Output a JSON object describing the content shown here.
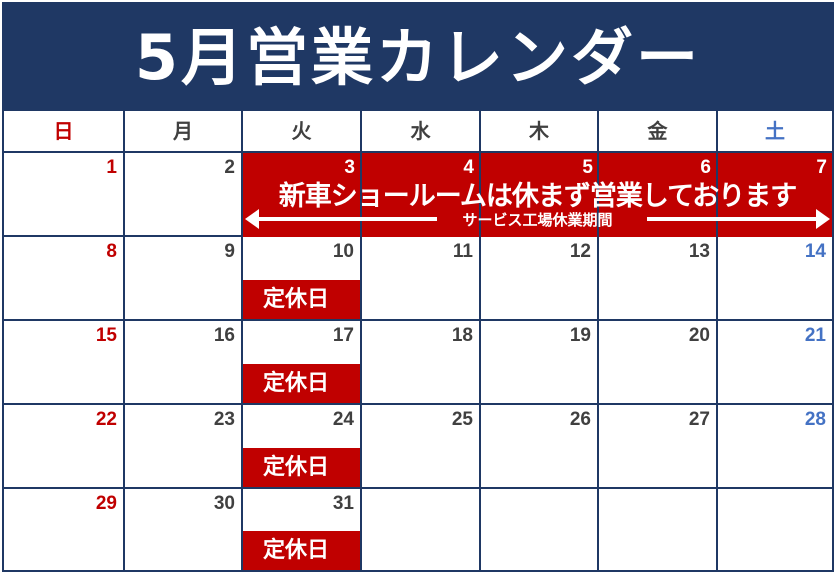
{
  "title": "5月営業カレンダー",
  "weekdays": [
    "日",
    "月",
    "火",
    "水",
    "木",
    "金",
    "土"
  ],
  "colors": {
    "navy": "#1f3864",
    "red": "#c00000",
    "sunday": "#c00000",
    "saturday": "#4472c4",
    "text": "#404040"
  },
  "event": {
    "dates": [
      "3",
      "4",
      "5",
      "6",
      "7"
    ],
    "message": "新車ショールームは休まず営業しております",
    "service_note": "サービス工場休業期間"
  },
  "weeks": [
    [
      "",
      "",
      "",
      "",
      "",
      "",
      ""
    ],
    [
      "1",
      "2",
      "3",
      "4",
      "5",
      "6",
      "7"
    ],
    [
      "8",
      "9",
      "10",
      "11",
      "12",
      "13",
      "14"
    ],
    [
      "15",
      "16",
      "17",
      "18",
      "19",
      "20",
      "21"
    ],
    [
      "22",
      "23",
      "24",
      "25",
      "26",
      "27",
      "28"
    ],
    [
      "29",
      "30",
      "31",
      "",
      "",
      "",
      ""
    ]
  ],
  "closed_label": "定休日"
}
